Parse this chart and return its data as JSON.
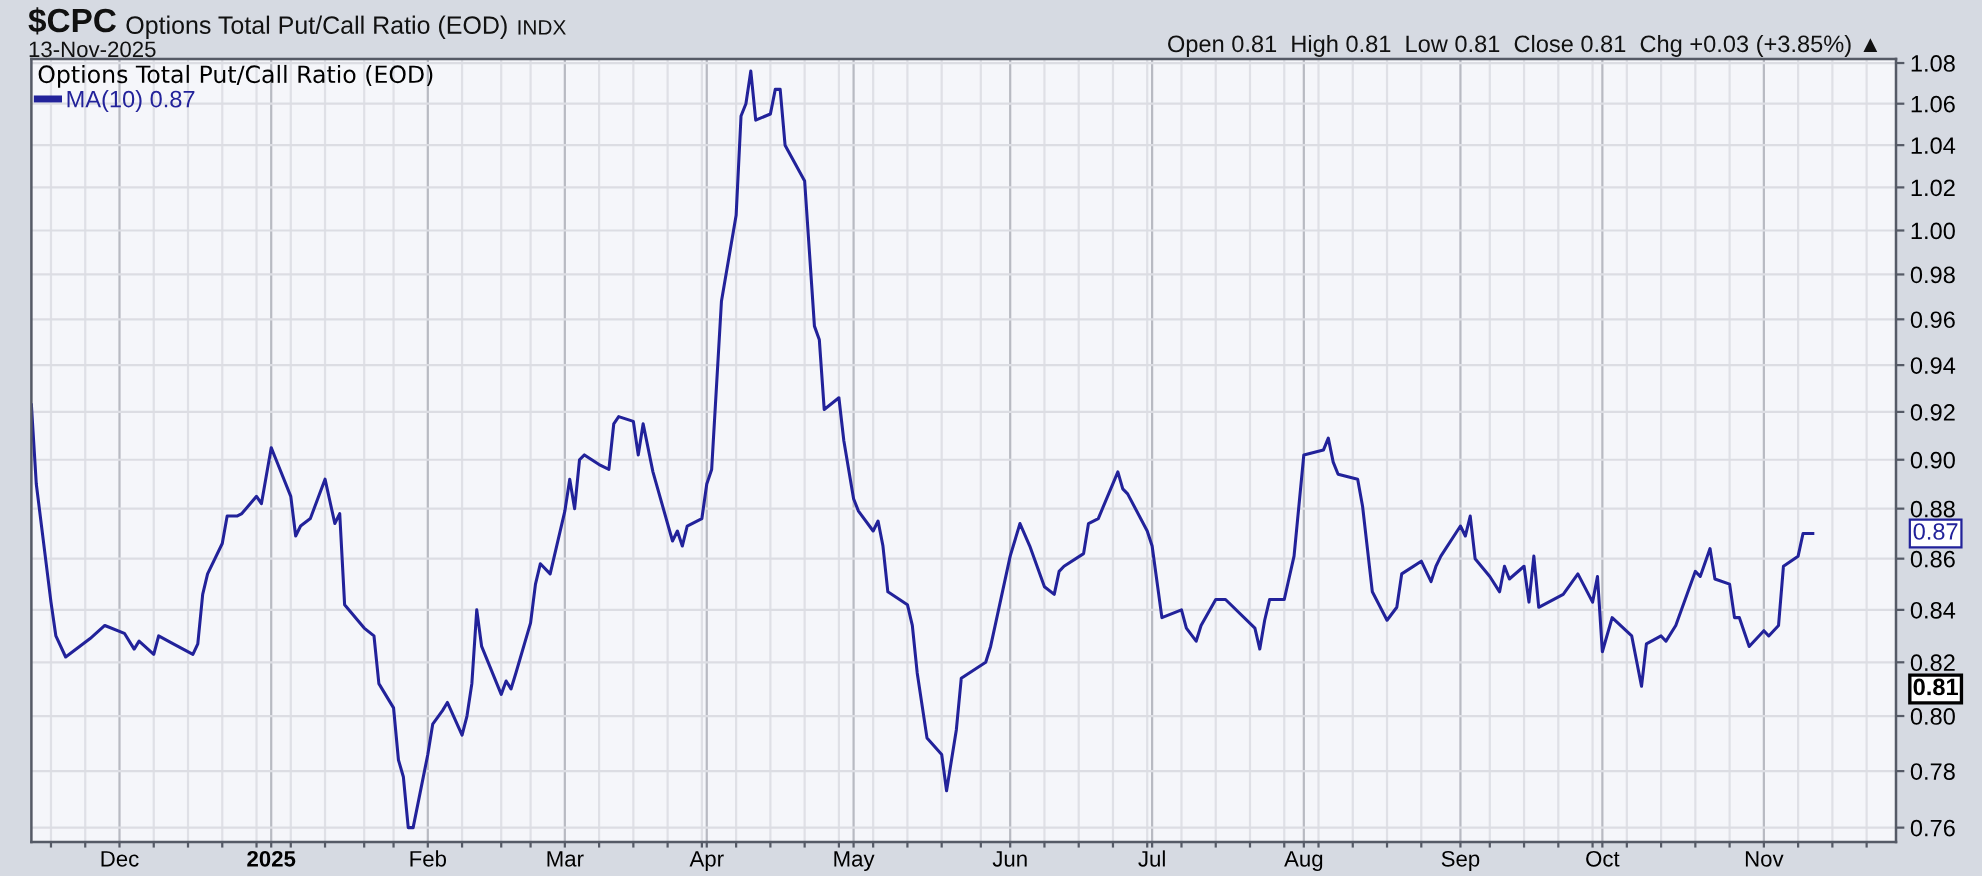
{
  "chart_data": {
    "type": "line",
    "title": "$CPC",
    "subtitle": "13-Nov-2025",
    "legend_title": "Options Total Put/Call Ratio (EOD)",
    "annotations": [
      "Options Total Put/Call Ratio (EOD)",
      "INDX",
      "Open 0.81  High 0.81  Low 0.81  Close 0.81  Chg +0.03 (+3.85%) ▲",
      "0.87",
      "0.81"
    ],
    "x": [
      "2024-11-14",
      "2024-11-15",
      "2024-11-18",
      "2024-11-19",
      "2024-11-21",
      "2024-11-26",
      "2024-11-29",
      "2024-12-03",
      "2024-12-05",
      "2024-12-06",
      "2024-12-09",
      "2024-12-10",
      "2024-12-13",
      "2024-12-17",
      "2024-12-18",
      "2024-12-19",
      "2024-12-20",
      "2024-12-23",
      "2024-12-24",
      "2024-12-26",
      "2024-12-27",
      "2024-12-30",
      "2024-12-31",
      "2025-01-02",
      "2025-01-03",
      "2025-01-06",
      "2025-01-07",
      "2025-01-08",
      "2025-01-10",
      "2025-01-13",
      "2025-01-14",
      "2025-01-15",
      "2025-01-16",
      "2025-01-17",
      "2025-01-21",
      "2025-01-23",
      "2025-01-24",
      "2025-01-27",
      "2025-01-28",
      "2025-01-29",
      "2025-01-30",
      "2025-01-31",
      "2025-02-03",
      "2025-02-04",
      "2025-02-06",
      "2025-02-07",
      "2025-02-10",
      "2025-02-11",
      "2025-02-12",
      "2025-02-13",
      "2025-02-14",
      "2025-02-18",
      "2025-02-19",
      "2025-02-20",
      "2025-02-21",
      "2025-02-24",
      "2025-02-25",
      "2025-02-26",
      "2025-02-28",
      "2025-03-03",
      "2025-03-04",
      "2025-03-05",
      "2025-03-06",
      "2025-03-07",
      "2025-03-10",
      "2025-03-12",
      "2025-03-13",
      "2025-03-14",
      "2025-03-17",
      "2025-03-18",
      "2025-03-19",
      "2025-03-21",
      "2025-03-25",
      "2025-03-26",
      "2025-03-27",
      "2025-03-28",
      "2025-03-31",
      "2025-04-01",
      "2025-04-02",
      "2025-04-04",
      "2025-04-07",
      "2025-04-08",
      "2025-04-09",
      "2025-04-10",
      "2025-04-11",
      "2025-04-14",
      "2025-04-15",
      "2025-04-16",
      "2025-04-17",
      "2025-04-21",
      "2025-04-23",
      "2025-04-24",
      "2025-04-25",
      "2025-04-28",
      "2025-04-29",
      "2025-05-01",
      "2025-05-02",
      "2025-05-05",
      "2025-05-06",
      "2025-05-07",
      "2025-05-08",
      "2025-05-12",
      "2025-05-13",
      "2025-05-14",
      "2025-05-16",
      "2025-05-19",
      "2025-05-20",
      "2025-05-22",
      "2025-05-23",
      "2025-05-28",
      "2025-05-29",
      "2025-06-02",
      "2025-06-04",
      "2025-06-06",
      "2025-06-09",
      "2025-06-11",
      "2025-06-12",
      "2025-06-13",
      "2025-06-17",
      "2025-06-18",
      "2025-06-20",
      "2025-06-24",
      "2025-06-25",
      "2025-06-26",
      "2025-06-30",
      "2025-07-01",
      "2025-07-03",
      "2025-07-07",
      "2025-07-08",
      "2025-07-10",
      "2025-07-11",
      "2025-07-14",
      "2025-07-16",
      "2025-07-22",
      "2025-07-23",
      "2025-07-24",
      "2025-07-25",
      "2025-07-28",
      "2025-07-30",
      "2025-08-01",
      "2025-08-05",
      "2025-08-06",
      "2025-08-07",
      "2025-08-08",
      "2025-08-12",
      "2025-08-13",
      "2025-08-15",
      "2025-08-18",
      "2025-08-20",
      "2025-08-21",
      "2025-08-25",
      "2025-08-27",
      "2025-08-28",
      "2025-08-29",
      "2025-09-02",
      "2025-09-03",
      "2025-09-04",
      "2025-09-05",
      "2025-09-08",
      "2025-09-10",
      "2025-09-11",
      "2025-09-12",
      "2025-09-15",
      "2025-09-16",
      "2025-09-17",
      "2025-09-18",
      "2025-09-23",
      "2025-09-26",
      "2025-09-29",
      "2025-09-30",
      "2025-10-01",
      "2025-10-03",
      "2025-10-07",
      "2025-10-09",
      "2025-10-10",
      "2025-10-13",
      "2025-10-14",
      "2025-10-16",
      "2025-10-20",
      "2025-10-21",
      "2025-10-23",
      "2025-10-24",
      "2025-10-27",
      "2025-10-28",
      "2025-10-29",
      "2025-10-31",
      "2025-11-03",
      "2025-11-04",
      "2025-11-06",
      "2025-11-07",
      "2025-11-10",
      "2025-11-11",
      "2025-11-13"
    ],
    "series": [
      {
        "name": "MA(10) 0.87",
        "color": "#22229a",
        "values": [
          0.923,
          0.89,
          0.843,
          0.83,
          0.822,
          0.829,
          0.834,
          0.831,
          0.825,
          0.828,
          0.823,
          0.83,
          0.827,
          0.823,
          0.827,
          0.846,
          0.854,
          0.866,
          0.877,
          0.877,
          0.878,
          0.885,
          0.882,
          0.905,
          0.9,
          0.885,
          0.869,
          0.873,
          0.876,
          0.892,
          0.883,
          0.874,
          0.878,
          0.842,
          0.833,
          0.83,
          0.812,
          0.803,
          0.784,
          0.778,
          0.76,
          0.76,
          0.786,
          0.797,
          0.802,
          0.805,
          0.793,
          0.8,
          0.812,
          0.84,
          0.826,
          0.808,
          0.813,
          0.81,
          0.816,
          0.835,
          0.85,
          0.858,
          0.854,
          0.879,
          0.892,
          0.88,
          0.9,
          0.902,
          0.898,
          0.896,
          0.915,
          0.918,
          0.916,
          0.902,
          0.915,
          0.895,
          0.867,
          0.871,
          0.865,
          0.873,
          0.876,
          0.89,
          0.896,
          0.968,
          1.007,
          1.054,
          1.06,
          1.076,
          1.052,
          1.055,
          1.067,
          1.067,
          1.04,
          1.023,
          0.957,
          0.951,
          0.921,
          0.926,
          0.908,
          0.884,
          0.879,
          0.871,
          0.875,
          0.865,
          0.847,
          0.842,
          0.834,
          0.816,
          0.792,
          0.786,
          0.773,
          0.795,
          0.814,
          0.82,
          0.826,
          0.861,
          0.874,
          0.865,
          0.849,
          0.846,
          0.855,
          0.857,
          0.862,
          0.874,
          0.876,
          0.895,
          0.888,
          0.886,
          0.871,
          0.865,
          0.837,
          0.84,
          0.833,
          0.828,
          0.834,
          0.844,
          0.844,
          0.833,
          0.825,
          0.836,
          0.844,
          0.844,
          0.861,
          0.902,
          0.904,
          0.909,
          0.899,
          0.894,
          0.892,
          0.881,
          0.847,
          0.836,
          0.841,
          0.854,
          0.859,
          0.851,
          0.857,
          0.861,
          0.873,
          0.869,
          0.877,
          0.86,
          0.853,
          0.847,
          0.857,
          0.852,
          0.857,
          0.843,
          0.861,
          0.841,
          0.846,
          0.854,
          0.843,
          0.853,
          0.824,
          0.837,
          0.83,
          0.811,
          0.827,
          0.83,
          0.828,
          0.834,
          0.855,
          0.853,
          0.864,
          0.852,
          0.85,
          0.837,
          0.837,
          0.826,
          0.832,
          0.83,
          0.834,
          0.857,
          0.861,
          0.87,
          0.87
        ]
      }
    ],
    "xlim": [
      "2024-11-14",
      "2025-11-30"
    ],
    "xticks": [
      {
        "value": "2024-11-18",
        "label": null
      },
      {
        "value": "2024-11-25",
        "label": null
      },
      {
        "value": "2024-12-02",
        "label": "Dec"
      },
      {
        "value": "2024-12-09",
        "label": null
      },
      {
        "value": "2024-12-16",
        "label": null
      },
      {
        "value": "2024-12-23",
        "label": null
      },
      {
        "value": "2024-12-30",
        "label": null
      },
      {
        "value": "2025-01-02",
        "label": "2025"
      },
      {
        "value": "2025-01-06",
        "label": null
      },
      {
        "value": "2025-01-13",
        "label": null
      },
      {
        "value": "2025-01-21",
        "label": null
      },
      {
        "value": "2025-01-27",
        "label": null
      },
      {
        "value": "2025-02-03",
        "label": "Feb"
      },
      {
        "value": "2025-02-10",
        "label": null
      },
      {
        "value": "2025-02-18",
        "label": null
      },
      {
        "value": "2025-02-24",
        "label": null
      },
      {
        "value": "2025-03-03",
        "label": "Mar"
      },
      {
        "value": "2025-03-10",
        "label": null
      },
      {
        "value": "2025-03-17",
        "label": null
      },
      {
        "value": "2025-03-24",
        "label": null
      },
      {
        "value": "2025-03-31",
        "label": null
      },
      {
        "value": "2025-04-01",
        "label": "Apr"
      },
      {
        "value": "2025-04-07",
        "label": null
      },
      {
        "value": "2025-04-14",
        "label": null
      },
      {
        "value": "2025-04-21",
        "label": null
      },
      {
        "value": "2025-04-28",
        "label": null
      },
      {
        "value": "2025-05-01",
        "label": "May"
      },
      {
        "value": "2025-05-05",
        "label": null
      },
      {
        "value": "2025-05-12",
        "label": null
      },
      {
        "value": "2025-05-19",
        "label": null
      },
      {
        "value": "2025-05-27",
        "label": null
      },
      {
        "value": "2025-06-02",
        "label": "Jun"
      },
      {
        "value": "2025-06-09",
        "label": null
      },
      {
        "value": "2025-06-16",
        "label": null
      },
      {
        "value": "2025-06-23",
        "label": null
      },
      {
        "value": "2025-06-30",
        "label": null
      },
      {
        "value": "2025-07-01",
        "label": "Jul"
      },
      {
        "value": "2025-07-07",
        "label": null
      },
      {
        "value": "2025-07-14",
        "label": null
      },
      {
        "value": "2025-07-21",
        "label": null
      },
      {
        "value": "2025-07-28",
        "label": null
      },
      {
        "value": "2025-08-01",
        "label": "Aug"
      },
      {
        "value": "2025-08-04",
        "label": null
      },
      {
        "value": "2025-08-11",
        "label": null
      },
      {
        "value": "2025-08-18",
        "label": null
      },
      {
        "value": "2025-08-25",
        "label": null
      },
      {
        "value": "2025-09-02",
        "label": "Sep"
      },
      {
        "value": "2025-09-08",
        "label": null
      },
      {
        "value": "2025-09-15",
        "label": null
      },
      {
        "value": "2025-09-22",
        "label": null
      },
      {
        "value": "2025-09-29",
        "label": null
      },
      {
        "value": "2025-10-01",
        "label": "Oct"
      },
      {
        "value": "2025-10-06",
        "label": null
      },
      {
        "value": "2025-10-13",
        "label": null
      },
      {
        "value": "2025-10-20",
        "label": null
      },
      {
        "value": "2025-10-27",
        "label": null
      },
      {
        "value": "2025-11-03",
        "label": "Nov"
      },
      {
        "value": "2025-11-10",
        "label": null
      },
      {
        "value": "2025-11-17",
        "label": null
      },
      {
        "value": "2025-11-24",
        "label": null
      }
    ],
    "ylim": [
      0.755,
      1.082
    ],
    "yticks": [
      0.76,
      0.78,
      {
        "value": 0.8,
        "label": "0.80"
      },
      0.82,
      0.84,
      0.86,
      0.88,
      {
        "value": 0.9,
        "label": "0.90"
      },
      0.92,
      0.94,
      0.96,
      0.98,
      {
        "value": 1.0,
        "label": "1.00"
      },
      1.02,
      1.04,
      1.06,
      1.08
    ],
    "log": true,
    "grid": true,
    "legend": "top left"
  }
}
